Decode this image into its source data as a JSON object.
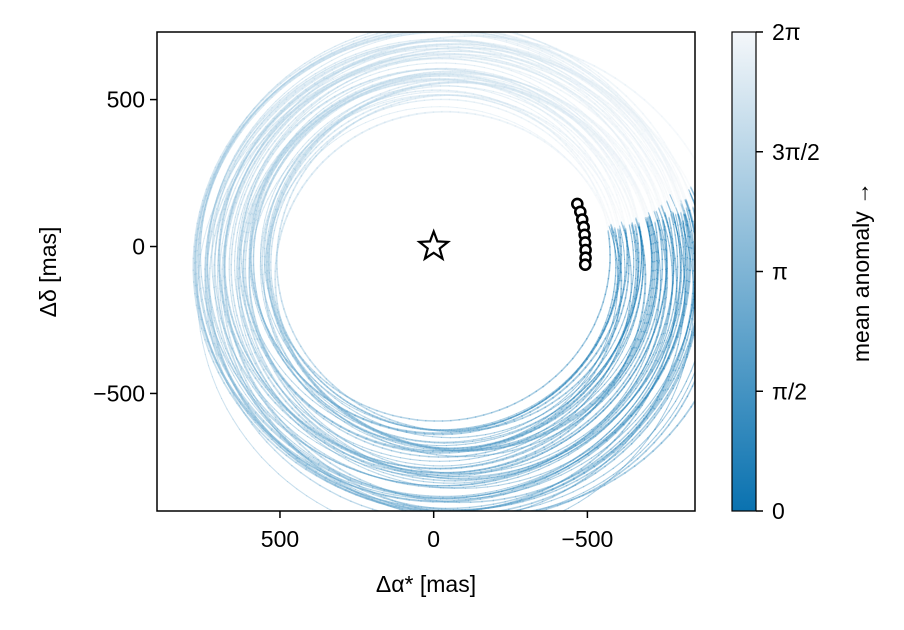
{
  "chart_data": {
    "type": "line",
    "xlabel": "Δα* [mas]",
    "ylabel": "Δδ [mas]",
    "xlim": [
      900,
      -850
    ],
    "ylim": [
      -900,
      730
    ],
    "x_ticks": [
      {
        "value": 500,
        "label": "500"
      },
      {
        "value": 0,
        "label": "0"
      },
      {
        "value": -500,
        "label": "−500"
      }
    ],
    "y_ticks": [
      {
        "value": 500,
        "label": "500"
      },
      {
        "value": 0,
        "label": "0"
      },
      {
        "value": -500,
        "label": "−500"
      }
    ],
    "grid": false,
    "colorbar": {
      "label": "mean anomaly →",
      "ticks": [
        {
          "value": 0,
          "label": "0"
        },
        {
          "value": 1.5708,
          "label": "π/2"
        },
        {
          "value": 3.1416,
          "label": "π"
        },
        {
          "value": 4.7124,
          "label": "3π/2"
        },
        {
          "value": 6.2832,
          "label": "2π"
        }
      ],
      "range": [
        0,
        6.2832
      ],
      "color_low": "#0a72b0",
      "color_high": "#f4f7fa"
    },
    "star": {
      "x": 0,
      "y": 0,
      "marker": "star"
    },
    "observations": [
      {
        "x": -467,
        "y": 145
      },
      {
        "x": -477,
        "y": 118
      },
      {
        "x": -483,
        "y": 92
      },
      {
        "x": -488,
        "y": 66
      },
      {
        "x": -491,
        "y": 40
      },
      {
        "x": -493,
        "y": 14
      },
      {
        "x": -494,
        "y": -12
      },
      {
        "x": -494,
        "y": -38
      },
      {
        "x": -493,
        "y": -62
      }
    ],
    "orbit_family": {
      "count": 60,
      "anchor": {
        "x": -480,
        "y": 40
      },
      "semi_major_range": [
        560,
        830
      ],
      "eccentricity_range": [
        0.05,
        0.22
      ],
      "orientation_range": [
        0.6,
        1.4
      ]
    }
  }
}
